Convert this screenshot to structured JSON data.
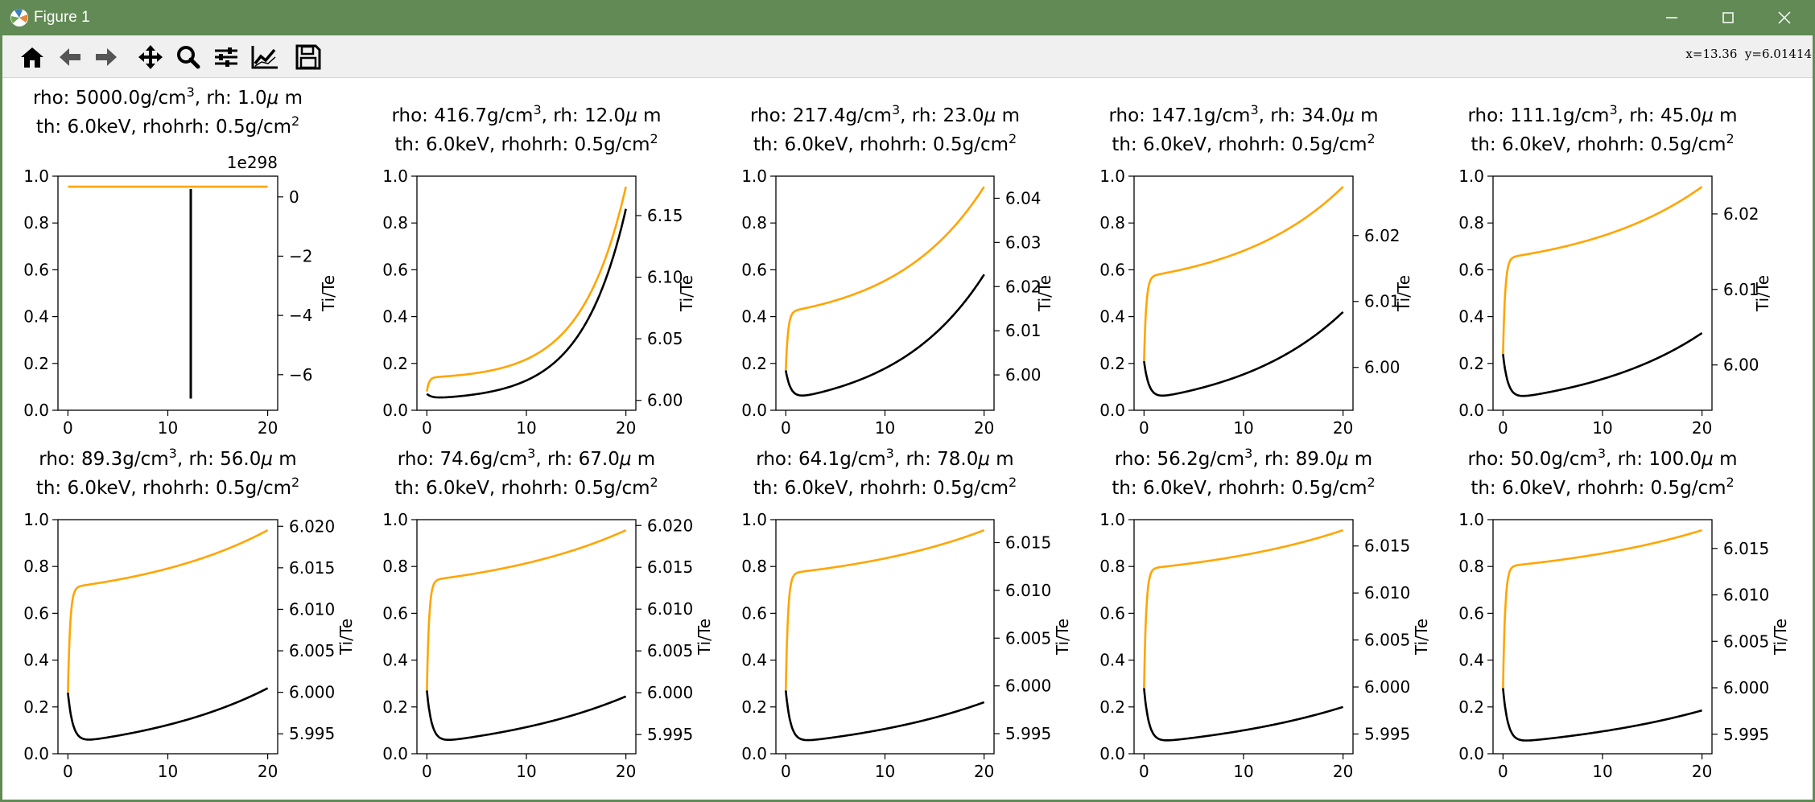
{
  "window": {
    "title": "Figure 1"
  },
  "toolbar": {
    "buttons": [
      {
        "name": "home-button",
        "icon": "home-icon"
      },
      {
        "name": "back-button",
        "icon": "arrow-left-icon"
      },
      {
        "name": "forward-button",
        "icon": "arrow-right-icon"
      },
      {
        "name": "pan-button",
        "icon": "move-icon"
      },
      {
        "name": "zoom-button",
        "icon": "magnifier-icon"
      },
      {
        "name": "subplots-button",
        "icon": "sliders-icon"
      },
      {
        "name": "axes-edit-button",
        "icon": "line-chart-icon"
      },
      {
        "name": "save-button",
        "icon": "floppy-disk-icon"
      }
    ],
    "coords": "x=13.36  y=6.01414"
  },
  "colors": {
    "curve_a": "#ffa500",
    "curve_b": "#000000",
    "titlebar": "#628a55",
    "toolbar": "#f0f0f0"
  },
  "chart_data": [
    {
      "type": "line",
      "title_line1": "rho: 5000.0g/cm",
      "title_line1_rest": ", rh: 1.0",
      "title_line1_unit": " m",
      "title_line2": "th: 6.0keV, rhohrh: 0.5g/cm",
      "xlim": [
        -1,
        21
      ],
      "ylim": [
        0,
        1
      ],
      "right_ylabel": "Ti/Te",
      "right_ylim": [
        -7.2,
        0.7
      ],
      "right_ticks": [
        "0",
        "−2",
        "−4",
        "−6"
      ],
      "right_tick_values": [
        0,
        -2,
        -4,
        -6
      ],
      "right_offset": "1e298",
      "special": "overflow",
      "orange_y": 0.955,
      "black_x": 12.3,
      "black_y": [
        0.05,
        0.945
      ]
    },
    {
      "type": "line",
      "title_line1": "rho: 416.7g/cm",
      "title_line1_rest": ", rh: 12.0",
      "title_line1_unit": " m",
      "title_line2": "th: 6.0keV, rhohrh: 0.5g/cm",
      "xlim": [
        -1,
        21
      ],
      "ylim": [
        0,
        1
      ],
      "right_ylabel": "Ti/Te",
      "right_ylim": [
        5.992,
        6.182
      ],
      "right_ticks": [
        "6.00",
        "6.05",
        "6.10",
        "6.15"
      ],
      "right_tick_values": [
        6.0,
        6.05,
        6.1,
        6.15
      ],
      "orange_start": 0.08,
      "orange_knee": 0.14,
      "orange_end": 0.955,
      "black_start": 0.07,
      "black_min": 0.05,
      "black_end": 0.86,
      "expo": 4.5
    },
    {
      "type": "line",
      "title_line1": "rho: 217.4g/cm",
      "title_line1_rest": ", rh: 23.0",
      "title_line1_unit": " m",
      "title_line2": "th: 6.0keV, rhohrh: 0.5g/cm",
      "xlim": [
        -1,
        21
      ],
      "ylim": [
        0,
        1
      ],
      "right_ylabel": "Ti/Te",
      "right_ylim": [
        5.992,
        6.045
      ],
      "right_ticks": [
        "6.00",
        "6.01",
        "6.02",
        "6.03",
        "6.04"
      ],
      "right_tick_values": [
        6.0,
        6.01,
        6.02,
        6.03,
        6.04
      ],
      "orange_start": 0.17,
      "orange_knee": 0.42,
      "orange_end": 0.955,
      "black_start": 0.17,
      "black_min": 0.045,
      "black_end": 0.58,
      "expo": 2.2
    },
    {
      "type": "line",
      "title_line1": "rho: 147.1g/cm",
      "title_line1_rest": ", rh: 34.0",
      "title_line1_unit": " m",
      "title_line2": "th: 6.0keV, rhohrh: 0.5g/cm",
      "xlim": [
        -1,
        21
      ],
      "ylim": [
        0,
        1
      ],
      "right_ylabel": "Ti/Te",
      "right_ylim": [
        5.9935,
        6.029
      ],
      "right_ticks": [
        "6.00",
        "6.01",
        "6.02"
      ],
      "right_tick_values": [
        6.0,
        6.01,
        6.02
      ],
      "orange_start": 0.21,
      "orange_knee": 0.57,
      "orange_end": 0.955,
      "black_start": 0.21,
      "black_min": 0.045,
      "black_end": 0.42,
      "expo": 1.8
    },
    {
      "type": "line",
      "title_line1": "rho: 111.1g/cm",
      "title_line1_rest": ", rh: 45.0",
      "title_line1_unit": " m",
      "title_line2": "th: 6.0keV, rhohrh: 0.5g/cm",
      "xlim": [
        -1,
        21
      ],
      "ylim": [
        0,
        1
      ],
      "right_ylabel": "Ti/Te",
      "right_ylim": [
        5.994,
        6.025
      ],
      "right_ticks": [
        "6.00",
        "6.01",
        "6.02"
      ],
      "right_tick_values": [
        6.0,
        6.01,
        6.02
      ],
      "orange_start": 0.24,
      "orange_knee": 0.65,
      "orange_end": 0.955,
      "black_start": 0.24,
      "black_min": 0.045,
      "black_end": 0.33,
      "expo": 1.6
    },
    {
      "type": "line",
      "title_line1": "rho: 89.3g/cm",
      "title_line1_rest": ", rh: 56.0",
      "title_line1_unit": " m",
      "title_line2": "th: 6.0keV, rhohrh: 0.5g/cm",
      "xlim": [
        -1,
        21
      ],
      "ylim": [
        0,
        1
      ],
      "right_ylabel": "Ti/Te",
      "right_ylim": [
        5.9926,
        6.0208
      ],
      "right_ticks": [
        "5.995",
        "6.000",
        "6.005",
        "6.010",
        "6.015",
        "6.020"
      ],
      "right_tick_values": [
        5.995,
        6.0,
        6.005,
        6.01,
        6.015,
        6.02
      ],
      "orange_start": 0.26,
      "orange_knee": 0.71,
      "orange_end": 0.955,
      "black_start": 0.26,
      "black_min": 0.045,
      "black_end": 0.28,
      "expo": 1.4
    },
    {
      "type": "line",
      "title_line1": "rho: 74.6g/cm",
      "title_line1_rest": ", rh: 67.0",
      "title_line1_unit": " m",
      "title_line2": "th: 6.0keV, rhohrh: 0.5g/cm",
      "xlim": [
        -1,
        21
      ],
      "ylim": [
        0,
        1
      ],
      "right_ylabel": "Ti/Te",
      "right_ylim": [
        5.9927,
        6.0207
      ],
      "right_ticks": [
        "5.995",
        "6.000",
        "6.005",
        "6.010",
        "6.015",
        "6.020"
      ],
      "right_tick_values": [
        5.995,
        6.0,
        6.005,
        6.01,
        6.015,
        6.02
      ],
      "orange_start": 0.27,
      "orange_knee": 0.74,
      "orange_end": 0.955,
      "black_start": 0.27,
      "black_min": 0.045,
      "black_end": 0.245,
      "expo": 1.3
    },
    {
      "type": "line",
      "title_line1": "rho: 64.1g/cm",
      "title_line1_rest": ", rh: 78.0",
      "title_line1_unit": " m",
      "title_line2": "th: 6.0keV, rhohrh: 0.5g/cm",
      "xlim": [
        -1,
        21
      ],
      "ylim": [
        0,
        1
      ],
      "right_ylabel": "Ti/Te",
      "right_ylim": [
        5.9929,
        6.0174
      ],
      "right_ticks": [
        "5.995",
        "6.000",
        "6.005",
        "6.010",
        "6.015"
      ],
      "right_tick_values": [
        5.995,
        6.0,
        6.005,
        6.01,
        6.015
      ],
      "orange_start": 0.27,
      "orange_knee": 0.77,
      "orange_end": 0.955,
      "black_start": 0.27,
      "black_min": 0.045,
      "black_end": 0.22,
      "expo": 1.25
    },
    {
      "type": "line",
      "title_line1": "rho: 56.2g/cm",
      "title_line1_rest": ", rh: 89.0",
      "title_line1_unit": " m",
      "title_line2": "th: 6.0keV, rhohrh: 0.5g/cm",
      "xlim": [
        -1,
        21
      ],
      "ylim": [
        0,
        1
      ],
      "right_ylabel": "Ti/Te",
      "right_ylim": [
        5.9929,
        6.0178
      ],
      "right_ticks": [
        "5.995",
        "6.000",
        "6.005",
        "6.010",
        "6.015"
      ],
      "right_tick_values": [
        5.995,
        6.0,
        6.005,
        6.01,
        6.015
      ],
      "orange_start": 0.28,
      "orange_knee": 0.79,
      "orange_end": 0.955,
      "black_start": 0.28,
      "black_min": 0.045,
      "black_end": 0.2,
      "expo": 1.2
    },
    {
      "type": "line",
      "title_line1": "rho: 50.0g/cm",
      "title_line1_rest": ", rh: 100.0",
      "title_line1_unit": " m",
      "title_line2": "th: 6.0keV, rhohrh: 0.5g/cm",
      "xlim": [
        -1,
        21
      ],
      "ylim": [
        0,
        1
      ],
      "right_ylabel": "Ti/Te",
      "right_ylim": [
        5.9929,
        6.0181
      ],
      "right_ticks": [
        "5.995",
        "6.000",
        "6.005",
        "6.010",
        "6.015"
      ],
      "right_tick_values": [
        5.995,
        6.0,
        6.005,
        6.01,
        6.015
      ],
      "orange_start": 0.28,
      "orange_knee": 0.8,
      "orange_end": 0.955,
      "black_start": 0.28,
      "black_min": 0.045,
      "black_end": 0.185,
      "expo": 1.15
    }
  ],
  "axis": {
    "left_ticks": [
      "0.0",
      "0.2",
      "0.4",
      "0.6",
      "0.8",
      "1.0"
    ],
    "left_tick_values": [
      0,
      0.2,
      0.4,
      0.6,
      0.8,
      1.0
    ],
    "x_ticks": [
      "0",
      "10",
      "20"
    ],
    "x_tick_values": [
      0,
      10,
      20
    ],
    "title_superscript_1": "3",
    "title_superscript_2": "2",
    "mu": "μ"
  }
}
